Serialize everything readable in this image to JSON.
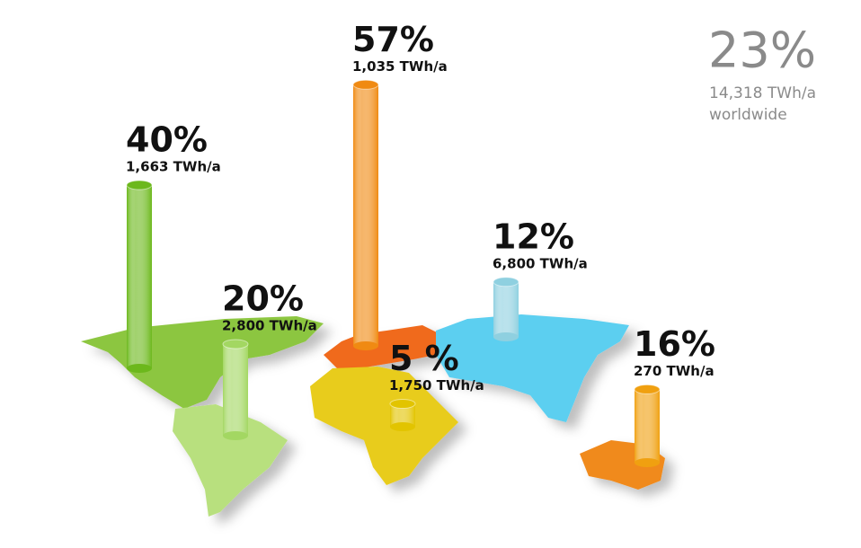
{
  "chart_data": {
    "type": "cylinder-map",
    "categories": [
      null,
      null,
      null,
      null,
      null,
      null
    ],
    "values": [
      40,
      20,
      57,
      5,
      12,
      16
    ],
    "value_labels": [
      "40%",
      "20%",
      "57%",
      "5 %",
      "12%",
      "16%"
    ],
    "energy_labels": [
      "1,663 TWh/a",
      "2,800 TWh/a",
      "1,035 TWh/a",
      "1,750 TWh/a",
      "6,800 TWh/a",
      "270 TWh/a"
    ],
    "colors": [
      "#6cb81c",
      "#a3d762",
      "#f08a12",
      "#e2c400",
      "#8fd0e0",
      "#f0a010"
    ],
    "total": {
      "label": "23%",
      "energy": "14,318 TWh/a",
      "note": "worldwide"
    }
  }
}
